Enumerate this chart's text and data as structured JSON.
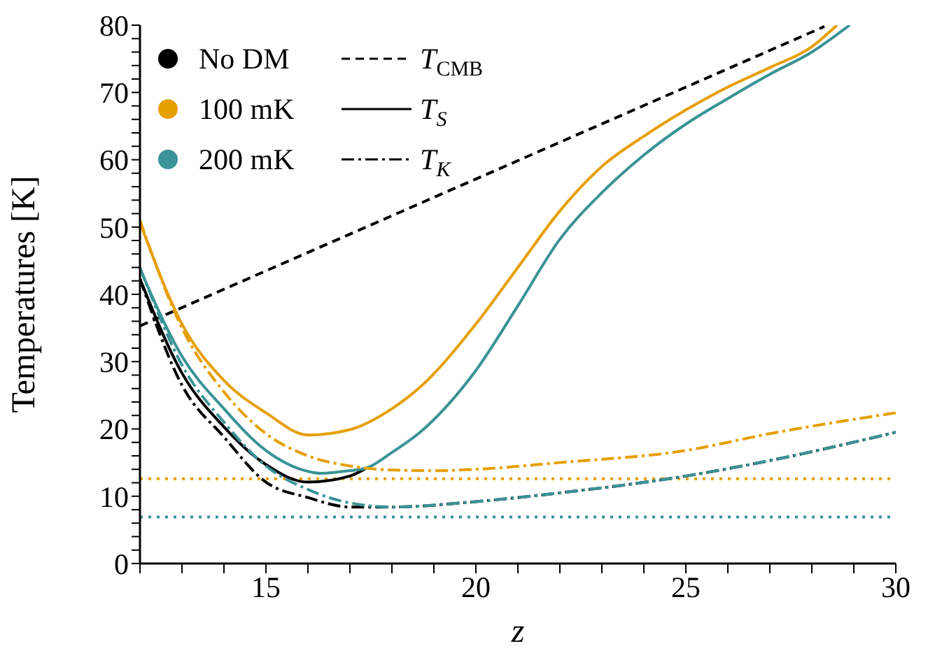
{
  "chart_data": {
    "type": "line",
    "xlabel": "z",
    "ylabel": "Temperatures [K]",
    "xlim": [
      12,
      30
    ],
    "ylim": [
      0,
      80
    ],
    "xticks": [
      {
        "value": 12,
        "label": null
      },
      {
        "value": 13,
        "label": null
      },
      {
        "value": 14,
        "label": null
      },
      15,
      {
        "value": 16,
        "label": null
      },
      {
        "value": 17,
        "label": null
      },
      {
        "value": 18,
        "label": null
      },
      {
        "value": 19,
        "label": null
      },
      20,
      {
        "value": 21,
        "label": null
      },
      {
        "value": 22,
        "label": null
      },
      {
        "value": 23,
        "label": null
      },
      {
        "value": 24,
        "label": null
      },
      25,
      {
        "value": 26,
        "label": null
      },
      {
        "value": 27,
        "label": null
      },
      {
        "value": 28,
        "label": null
      },
      {
        "value": 29,
        "label": null
      },
      30
    ],
    "yticks": [
      0,
      {
        "value": 2,
        "label": null
      },
      {
        "value": 4,
        "label": null
      },
      {
        "value": 6,
        "label": null
      },
      {
        "value": 8,
        "label": null
      },
      10,
      {
        "value": 12,
        "label": null
      },
      {
        "value": 14,
        "label": null
      },
      {
        "value": 16,
        "label": null
      },
      {
        "value": 18,
        "label": null
      },
      20,
      {
        "value": 22,
        "label": null
      },
      {
        "value": 24,
        "label": null
      },
      {
        "value": 26,
        "label": null
      },
      {
        "value": 28,
        "label": null
      },
      30,
      {
        "value": 32,
        "label": null
      },
      {
        "value": 34,
        "label": null
      },
      {
        "value": 36,
        "label": null
      },
      {
        "value": 38,
        "label": null
      },
      40,
      {
        "value": 42,
        "label": null
      },
      {
        "value": 44,
        "label": null
      },
      {
        "value": 46,
        "label": null
      },
      {
        "value": 48,
        "label": null
      },
      50,
      {
        "value": 52,
        "label": null
      },
      {
        "value": 54,
        "label": null
      },
      {
        "value": 56,
        "label": null
      },
      {
        "value": 58,
        "label": null
      },
      60,
      {
        "value": 62,
        "label": null
      },
      {
        "value": 64,
        "label": null
      },
      {
        "value": 66,
        "label": null
      },
      {
        "value": 68,
        "label": null
      },
      70,
      {
        "value": 72,
        "label": null
      },
      {
        "value": 74,
        "label": null
      },
      {
        "value": 76,
        "label": null
      },
      {
        "value": 78,
        "label": null
      },
      80
    ],
    "legend": "top left",
    "annotations": [
      "No DM"
    ],
    "series": [
      {
        "name": "T$_{CMB}$",
        "color": "#000000",
        "line_style": "dashed",
        "x": [
          12,
          28.3
        ],
        "values": [
          35.3,
          79.8
        ]
      },
      {
        "name": "T$_{S}$",
        "color": "#000000",
        "line_style": "solid",
        "x": [
          12,
          13,
          14,
          15,
          16,
          17,
          17.4
        ],
        "values": [
          42.3,
          28.3,
          20.3,
          14.7,
          12.1,
          13,
          14.2
        ]
      },
      {
        "name": "T$_{K}$",
        "color": "#000000",
        "line_style": "dashdot",
        "x": [
          12,
          13,
          14,
          15,
          16,
          17,
          18,
          20,
          22,
          25,
          27,
          30
        ],
        "values": [
          42.3,
          26.5,
          18.8,
          12.1,
          9.8,
          8.4,
          8.4,
          9.2,
          10.5,
          13,
          15.3,
          19.5
        ]
      },
      {
        "name": "100 mK",
        "color": "#e69f00",
        "line_style": "solid",
        "x": [
          12,
          13,
          14,
          15,
          16,
          17,
          18,
          18.67,
          20,
          21,
          22,
          23,
          24,
          25,
          26,
          27,
          28,
          28.6
        ],
        "values": [
          50.7,
          35.6,
          27.2,
          22.4,
          19.1,
          19.9,
          23,
          26.2,
          35.6,
          44,
          52.4,
          59,
          63.5,
          67.4,
          70.8,
          73.7,
          76.8,
          80
        ]
      },
      {
        "name": "200 mK",
        "color": "#3a9396",
        "line_style": "solid",
        "x": [
          12,
          13,
          14,
          15,
          16,
          16.3,
          17,
          17.4,
          18,
          18.67,
          20,
          21,
          22,
          23,
          24,
          25,
          26,
          27,
          28,
          28.9
        ],
        "values": [
          43.8,
          30.8,
          23,
          16.8,
          13.7,
          13.4,
          13.8,
          14.2,
          16.5,
          19.5,
          28.7,
          38.3,
          48.2,
          55.1,
          60.7,
          65.3,
          69.1,
          72.7,
          76,
          80
        ]
      },
      {
        "color": "#e69f00",
        "line_style": "dashdot",
        "x": [
          12,
          13,
          14,
          15,
          16,
          17,
          18,
          19,
          20,
          22,
          25,
          27,
          30
        ],
        "values": [
          51,
          35,
          25.5,
          19.3,
          16,
          14.5,
          13.9,
          13.8,
          14,
          15,
          16.8,
          19.3,
          22.4
        ]
      },
      {
        "color": "#3a9396",
        "line_style": "dashdot",
        "x": [
          12,
          13,
          14,
          15,
          16,
          17,
          18,
          20,
          22,
          25,
          27,
          30
        ],
        "values": [
          44,
          29.5,
          21,
          14.5,
          11,
          9,
          8.4,
          9.2,
          10.5,
          13,
          15.3,
          19.5
        ]
      }
    ],
    "ref_lines": [
      {
        "axis": "y",
        "value": 12.6,
        "color": "#e69f00",
        "line_style": "dotted"
      },
      {
        "axis": "y",
        "value": 6.9,
        "color": "#3a9396",
        "line_style": "dotted"
      }
    ]
  }
}
